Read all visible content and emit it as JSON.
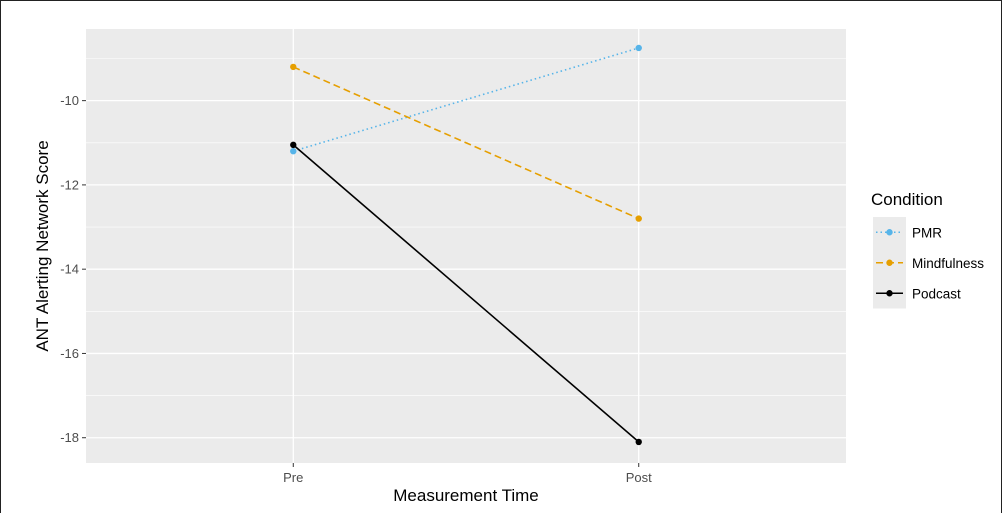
{
  "chart_data": {
    "type": "line",
    "title": "",
    "xlabel": "Measurement Time",
    "ylabel": "ANT Alerting Network Score",
    "categories": [
      "Pre",
      "Post"
    ],
    "ylim": [
      -18.6,
      -8.3
    ],
    "yticks": [
      -18,
      -16,
      -14,
      -12,
      -10
    ],
    "ytick_labels": [
      "-18",
      "-16",
      "-14",
      "-12",
      "-10"
    ],
    "grid": true,
    "legend": {
      "title": "Condition",
      "position": "right"
    },
    "series": [
      {
        "name": "PMR",
        "values": [
          -11.2,
          -8.75
        ],
        "color": "#56B4E9",
        "linestyle": "dotted"
      },
      {
        "name": "Mindfulness",
        "values": [
          -9.2,
          -12.8
        ],
        "color": "#E69F00",
        "linestyle": "dashed"
      },
      {
        "name": "Podcast",
        "values": [
          -11.05,
          -18.1
        ],
        "color": "#000000",
        "linestyle": "solid"
      }
    ],
    "colors": {
      "panel_background": "#EBEBEB",
      "grid": "#FFFFFF",
      "tick_label": "#4D4D4D"
    }
  }
}
